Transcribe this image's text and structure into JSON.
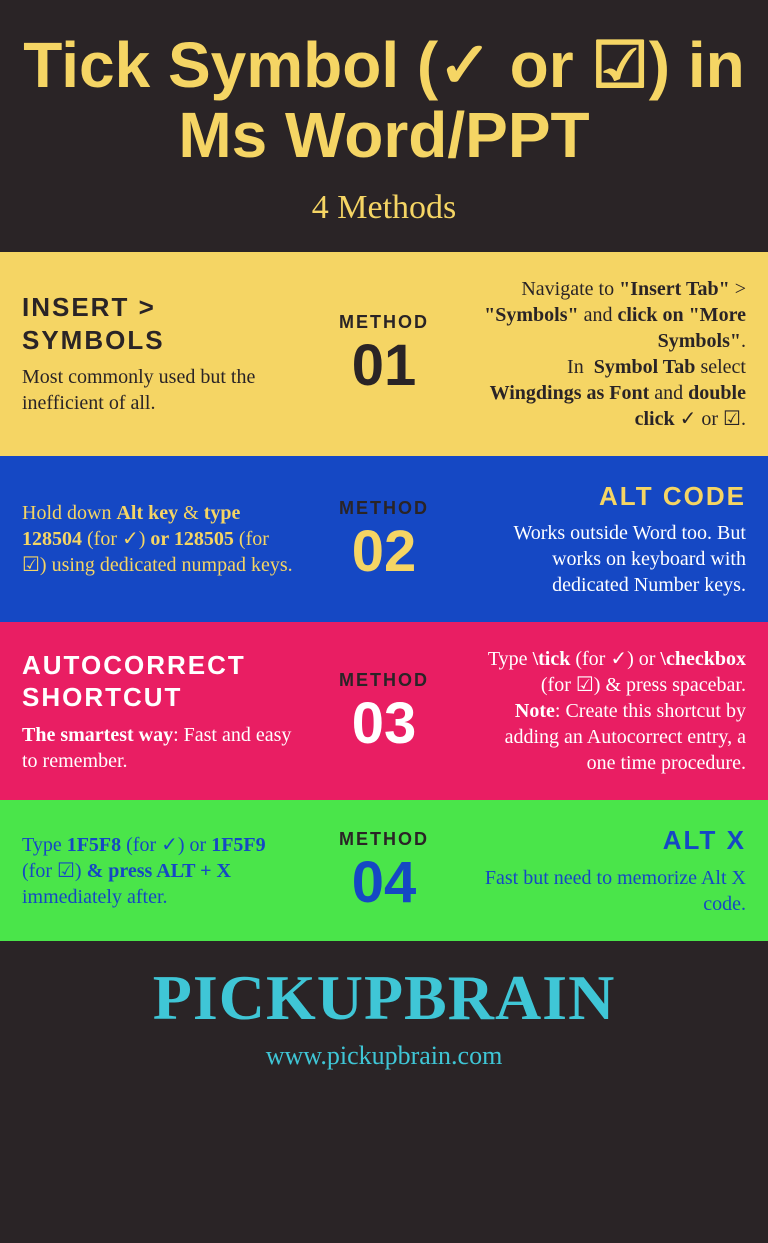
{
  "header": {
    "title": "Tick Symbol (✓ or ☑) in Ms Word/PPT",
    "subtitle": "4 Methods"
  },
  "methods": {
    "m1": {
      "label": "METHOD",
      "num": "01",
      "heading": "INSERT > SYMBOLS",
      "left": "Most commonly used but the inefficient of all.",
      "right": "Navigate to <b>\"Insert Tab\"</b> > <b>\"Symbols\"</b> and <b>click on \"More Symbols\"</b>.<br>In&nbsp;&nbsp;<b>Symbol Tab</b> select <b>Wingdings as Font</b> and <b>double click</b> ✓ or ☑."
    },
    "m2": {
      "label": "METHOD",
      "num": "02",
      "heading": "ALT CODE",
      "left": "Hold down <b>Alt key</b> & <b>type 128504</b> (for ✓) <b>or 128505</b> (for ☑) using dedicated numpad keys.",
      "right": "Works outside Word too. But works on keyboard with dedicated Number keys."
    },
    "m3": {
      "label": "METHOD",
      "num": "03",
      "heading": "AUTOCORRECT SHORTCUT",
      "left": "<b>The smartest way</b>: Fast and easy to remember.",
      "right": "Type <b>\\tick</b> (for ✓) or <b>\\checkbox</b> (for ☑) & press spacebar.<br><b>Note</b>: Create this shortcut by adding an Autocorrect entry, a one time procedure."
    },
    "m4": {
      "label": "METHOD",
      "num": "04",
      "heading": "ALT X",
      "left": "Type <b>1F5F8</b> (for ✓) or <b>1F5F9</b> (for ☑) <b>& press ALT + X</b> immediately after.",
      "right": "Fast but need to memorize Alt X code."
    }
  },
  "footer": {
    "brand": "PICKUPBRAIN",
    "url": "www.pickupbrain.com"
  },
  "colors": {
    "background": "#2a2426",
    "accent_yellow": "#f5d564",
    "m1_bg": "#f5d564",
    "m2_bg": "#1548c4",
    "m3_bg": "#e91e63",
    "m4_bg": "#4ae54a",
    "brand": "#3fc6d6"
  }
}
